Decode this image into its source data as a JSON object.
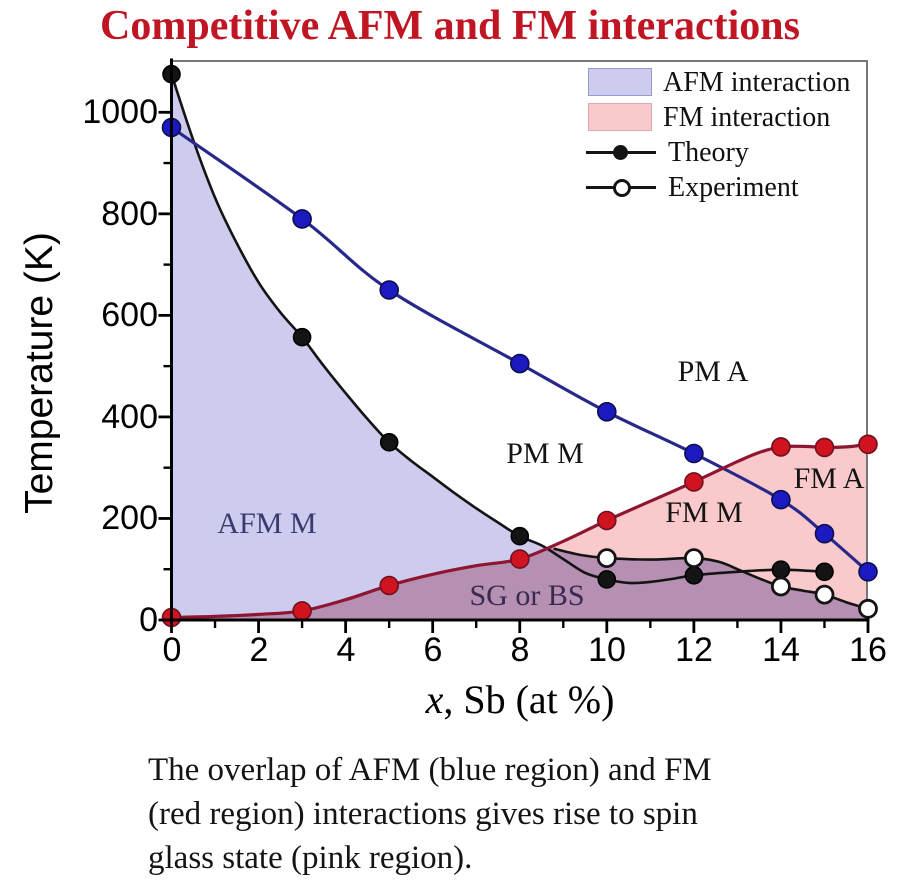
{
  "title": {
    "text": "Competitive AFM and FM interactions",
    "color": "#c01624"
  },
  "legend": {
    "afm": "AFM interaction",
    "fm": "FM interaction",
    "theory": "Theory",
    "experiment": "Experiment"
  },
  "region_labels": {
    "afm_m": "AFM M",
    "pm_m": "PM M",
    "pm_a": "PM A",
    "fm_m": "FM M",
    "fm_a": "FM A",
    "sg": "SG or BS"
  },
  "axes": {
    "y_label": "Temperature (K)",
    "x_label_italic": "x",
    "x_label_rest": ", Sb (at %)"
  },
  "caption": {
    "line1": "The overlap of AFM (blue region) and FM",
    "line2": "(red region) interactions gives rise to spin",
    "line3": "glass state (pink region)."
  },
  "chart_data": {
    "type": "line",
    "title": "Competitive AFM and FM interactions",
    "xlabel": "x, Sb (at %)",
    "ylabel": "Temperature (K)",
    "xlim": [
      0,
      16
    ],
    "ylim": [
      0,
      1103
    ],
    "x_ticks": [
      0,
      2,
      4,
      6,
      8,
      10,
      12,
      14,
      16
    ],
    "y_ticks": [
      0,
      200,
      400,
      600,
      800,
      1000
    ],
    "grid": false,
    "legend_position": "top-right",
    "regions": [
      {
        "name": "AFM interaction",
        "fill": "#cdcbee",
        "boundary_x": [
          0,
          0.5,
          1,
          1.5,
          2,
          2.5,
          3,
          3.5,
          4,
          4.5,
          5,
          5.5,
          6,
          6.5,
          7,
          7.5,
          8,
          8.4,
          8.8,
          9.4,
          10,
          11,
          12,
          12.6,
          13,
          13.5,
          14,
          14.5,
          15,
          15.5,
          16
        ],
        "boundary_y": [
          1075,
          945,
          832,
          742,
          665,
          606,
          557,
          500,
          447,
          396,
          350,
          314,
          282,
          250,
          220,
          192,
          165,
          150,
          140,
          128,
          122,
          119,
          122,
          114,
          100,
          82,
          66,
          58,
          50,
          35,
          22
        ]
      },
      {
        "name": "FM interaction",
        "fill": "#f9c9cb",
        "boundary_x": [
          0,
          1,
          2,
          3,
          4,
          5,
          6,
          7,
          8,
          9,
          10,
          11,
          12,
          13,
          13.5,
          14,
          14.5,
          15,
          15.5,
          16
        ],
        "boundary_y": [
          5,
          7,
          11,
          18,
          40,
          68,
          90,
          107,
          120,
          155,
          196,
          234,
          272,
          312,
          330,
          341,
          342,
          340,
          341,
          346
        ]
      },
      {
        "name": "Spin glass overlap (SG or BS)",
        "fill": "#b690b2",
        "boundary_x": [
          0,
          1,
          2,
          3,
          4,
          5,
          6,
          7,
          8,
          8.7,
          9.4,
          10,
          11,
          12,
          12.6,
          13,
          13.5,
          14,
          14.5,
          15,
          15.5,
          16
        ],
        "boundary_y": [
          5,
          7,
          11,
          18,
          40,
          68,
          90,
          107,
          120,
          141,
          128,
          122,
          119,
          122,
          114,
          100,
          82,
          66,
          58,
          50,
          35,
          22
        ]
      }
    ],
    "series": [
      {
        "name": "Theory",
        "line_color": "#141414",
        "lw": 2.6,
        "marker": "filled",
        "marker_fill": "#141414",
        "marker_stroke": "#000000",
        "marker_r": 8.5,
        "x": [
          0,
          3,
          5,
          8,
          10,
          12,
          14,
          15
        ],
        "y": [
          1075,
          557,
          350,
          165,
          80,
          88,
          99,
          95
        ],
        "line_x": [
          0,
          0.5,
          1,
          1.5,
          2,
          2.5,
          3,
          3.5,
          4,
          4.5,
          5,
          5.5,
          6,
          6.5,
          7,
          7.5,
          8,
          8.5,
          9,
          9.5,
          10,
          10.5,
          11,
          11.5,
          12,
          13,
          14,
          15
        ],
        "line_y": [
          1075,
          945,
          832,
          742,
          665,
          606,
          557,
          500,
          447,
          396,
          350,
          314,
          282,
          250,
          220,
          192,
          165,
          147,
          120,
          93,
          80,
          73,
          75,
          81,
          88,
          95,
          99,
          95
        ]
      },
      {
        "name": "Experiment",
        "line_color": "#141414",
        "lw": 2.6,
        "marker": "open",
        "marker_fill": "#ffffff",
        "marker_stroke": "#141414",
        "marker_r": 8.5,
        "x": [
          10,
          12,
          14,
          15,
          16
        ],
        "y": [
          122,
          122,
          66,
          50,
          22
        ],
        "line_x": [
          8.8,
          9.4,
          10,
          11,
          12,
          12.6,
          13,
          13.5,
          14,
          14.5,
          15,
          15.5,
          16
        ],
        "line_y": [
          140,
          128,
          122,
          119,
          122,
          114,
          100,
          82,
          66,
          58,
          50,
          35,
          22
        ]
      },
      {
        "name": "AFM-PM boundary (blue line)",
        "line_color": "#28288a",
        "lw": 3.2,
        "marker": "filled",
        "marker_fill": "#1a1ac0",
        "marker_stroke": "#0d0d50",
        "marker_r": 9,
        "x": [
          0,
          3,
          5,
          8,
          10,
          12,
          14,
          15,
          16
        ],
        "y": [
          970,
          790,
          650,
          505,
          410,
          328,
          237,
          170,
          95
        ],
        "line_x": [
          0,
          3,
          5,
          8,
          10,
          12,
          14,
          15,
          16
        ],
        "line_y": [
          970,
          790,
          650,
          505,
          410,
          328,
          237,
          170,
          95
        ]
      },
      {
        "name": "FM boundary (red line)",
        "line_color": "#8f1630",
        "lw": 3.2,
        "marker": "filled",
        "marker_fill": "#cf1420",
        "marker_stroke": "#701020",
        "marker_r": 9,
        "x": [
          0,
          3,
          5,
          8,
          10,
          12,
          14,
          15,
          16
        ],
        "y": [
          5,
          18,
          68,
          120,
          196,
          272,
          341,
          340,
          346
        ],
        "line_x": [
          0,
          1,
          2,
          3,
          4,
          5,
          6,
          7,
          8,
          9,
          10,
          11,
          12,
          13,
          13.5,
          14,
          14.5,
          15,
          15.5,
          16
        ],
        "line_y": [
          5,
          7,
          11,
          18,
          40,
          68,
          90,
          107,
          120,
          155,
          196,
          234,
          272,
          312,
          330,
          341,
          342,
          340,
          341,
          346
        ]
      }
    ]
  }
}
